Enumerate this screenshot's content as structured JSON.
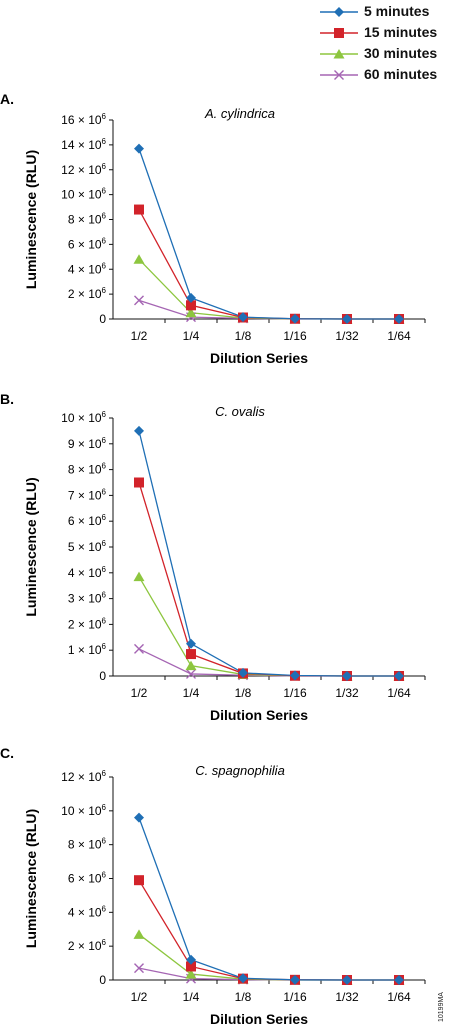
{
  "legend": [
    {
      "name": "5 minutes",
      "color": "#1f6fb5",
      "marker": "diamond"
    },
    {
      "name": "15 minutes",
      "color": "#d2232a",
      "marker": "square"
    },
    {
      "name": "30 minutes",
      "color": "#8dc63f",
      "marker": "triangle"
    },
    {
      "name": "60 minutes",
      "color": "#a565b3",
      "marker": "x"
    }
  ],
  "figure_code": "10199MA",
  "chart_data": [
    {
      "type": "line",
      "panel": "A.",
      "title": "A. cylindrica",
      "xlabel": "Dilution Series",
      "ylabel": "Luminescence (RLU)",
      "categories": [
        "1/2",
        "1/4",
        "1/8",
        "1/16",
        "1/32",
        "1/64"
      ],
      "ylim": [
        0,
        16
      ],
      "yticks": [
        0,
        2,
        4,
        6,
        8,
        10,
        12,
        14,
        16
      ],
      "yunit_exponent": 6,
      "series": [
        {
          "name": "5 minutes",
          "values": [
            13.7,
            1.7,
            0.15,
            0.02,
            0,
            0
          ]
        },
        {
          "name": "15 minutes",
          "values": [
            8.8,
            1.1,
            0.12,
            0.02,
            0,
            0
          ]
        },
        {
          "name": "30 minutes",
          "values": [
            4.8,
            0.5,
            0.08,
            0.01,
            0,
            0
          ]
        },
        {
          "name": "60 minutes",
          "values": [
            1.5,
            0.15,
            0.05,
            0,
            0,
            0
          ]
        }
      ]
    },
    {
      "type": "line",
      "panel": "B.",
      "title": "C. ovalis",
      "xlabel": "Dilution Series",
      "ylabel": "Luminescence (RLU)",
      "categories": [
        "1/2",
        "1/4",
        "1/8",
        "1/16",
        "1/32",
        "1/64"
      ],
      "ylim": [
        0,
        10
      ],
      "yticks": [
        0,
        1,
        2,
        3,
        4,
        5,
        6,
        7,
        8,
        9,
        10
      ],
      "yunit_exponent": 6,
      "series": [
        {
          "name": "5 minutes",
          "values": [
            9.5,
            1.25,
            0.12,
            0.02,
            0,
            0
          ]
        },
        {
          "name": "15 minutes",
          "values": [
            7.5,
            0.85,
            0.1,
            0.01,
            0,
            0
          ]
        },
        {
          "name": "30 minutes",
          "values": [
            3.85,
            0.4,
            0.06,
            0.01,
            0,
            0
          ]
        },
        {
          "name": "60 minutes",
          "values": [
            1.05,
            0.08,
            0.03,
            0,
            0,
            0
          ]
        }
      ]
    },
    {
      "type": "line",
      "panel": "C.",
      "title": "C. spagnophilia",
      "xlabel": "Dilution Series",
      "ylabel": "Luminescence (RLU)",
      "categories": [
        "1/2",
        "1/4",
        "1/8",
        "1/16",
        "1/32",
        "1/64"
      ],
      "ylim": [
        0,
        12
      ],
      "yticks": [
        0,
        2,
        4,
        6,
        8,
        10,
        12
      ],
      "yunit_exponent": 6,
      "series": [
        {
          "name": "5 minutes",
          "values": [
            9.6,
            1.2,
            0.1,
            0.01,
            0,
            0
          ]
        },
        {
          "name": "15 minutes",
          "values": [
            5.9,
            0.8,
            0.08,
            0.01,
            0,
            0
          ]
        },
        {
          "name": "30 minutes",
          "values": [
            2.7,
            0.35,
            0.05,
            0,
            0,
            0
          ]
        },
        {
          "name": "60 minutes",
          "values": [
            0.7,
            0.08,
            0.02,
            0,
            0,
            0
          ]
        }
      ]
    }
  ]
}
